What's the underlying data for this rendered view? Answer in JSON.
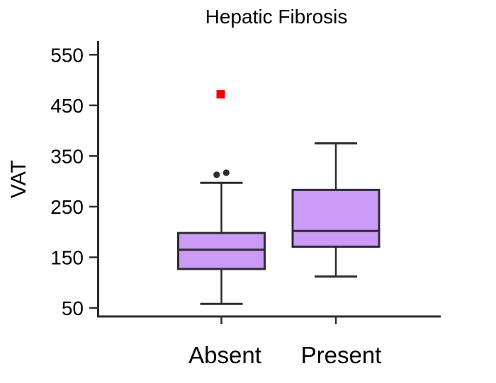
{
  "colors": {
    "background": "#FFFFFF",
    "box_fill": "#CB9BF5",
    "box_stroke": "#2E2A33",
    "axis": "#2E2A33",
    "text": "#000000",
    "outlier_dot": "#2D2D2D",
    "outlier_far": "#FA0000"
  },
  "chart_data": {
    "type": "box",
    "title": "Hepatic Fibrosis",
    "ylabel": "VAT",
    "xlabel": "",
    "categories": [
      "Absent",
      "Present"
    ],
    "y_ticks": [
      550,
      450,
      350,
      250,
      150,
      50
    ],
    "ylim": [
      33,
      577
    ],
    "grid": false,
    "legend": "none",
    "series": [
      {
        "name": "Absent",
        "whisker_low": 58,
        "q1": 127,
        "median": 165,
        "q3": 198,
        "whisker_high": 297,
        "outliers_near": [
          313,
          317
        ],
        "outliers_far": [
          472
        ]
      },
      {
        "name": "Present",
        "whisker_low": 112,
        "q1": 171,
        "median": 202,
        "q3": 283,
        "whisker_high": 375,
        "outliers_near": [],
        "outliers_far": []
      }
    ]
  }
}
